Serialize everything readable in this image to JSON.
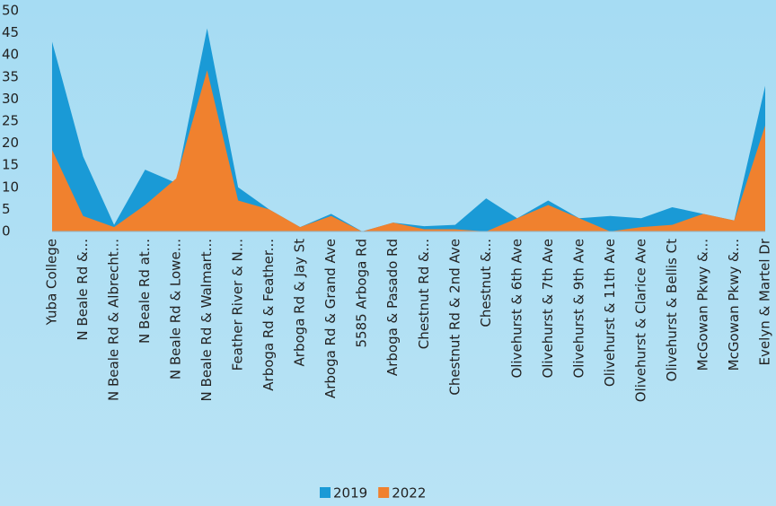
{
  "chart_data": {
    "type": "area",
    "categories": [
      "Yuba College",
      "N Beale Rd &...",
      "N Beale Rd & Albrecht...",
      "N Beale Rd at...",
      "N Beale Rd  & Lowe...",
      "N Beale Rd & Walmart...",
      "Feather River & N...",
      "Arboga Rd &  Feather...",
      "Arboga Rd &  Jay St",
      "Arboga Rd &  Grand Ave",
      "5585 Arboga Rd",
      "Arboga &   Pasado Rd",
      "Chestnut Rd &...",
      "Chestnut Rd  & 2nd Ave",
      "Chestnut &...",
      "Olivehurst  & 6th Ave",
      "Olivehurst  & 7th Ave",
      "Olivehurst  & 9th Ave",
      "Olivehurst  & 11th Ave",
      "Olivehurst & Clarice Ave",
      "Olivehurst  & Bellis Ct",
      "McGowan Pkwy &...",
      "McGowan Pkwy &...",
      "Evelyn &   Martel Dr"
    ],
    "series": [
      {
        "name": "2019",
        "color": "#1a9ad6",
        "values": [
          43,
          17,
          1.5,
          14,
          11,
          46,
          10,
          5,
          1,
          4,
          0,
          2,
          1.2,
          1.5,
          7.5,
          3,
          7,
          3,
          3.5,
          3,
          5.5,
          4,
          2.5,
          33
        ]
      },
      {
        "name": "2022",
        "color": "#f0812e",
        "values": [
          18.5,
          3.5,
          1,
          6,
          12,
          36.5,
          7,
          5,
          1,
          3.5,
          0,
          2,
          0.5,
          0.5,
          0,
          3,
          6,
          3,
          0,
          1,
          1.5,
          4,
          2.5,
          24
        ]
      }
    ],
    "ylim": [
      0,
      50
    ],
    "yticks": [
      0,
      5,
      10,
      15,
      20,
      25,
      30,
      35,
      40,
      45,
      50
    ],
    "legend": "bottom"
  }
}
